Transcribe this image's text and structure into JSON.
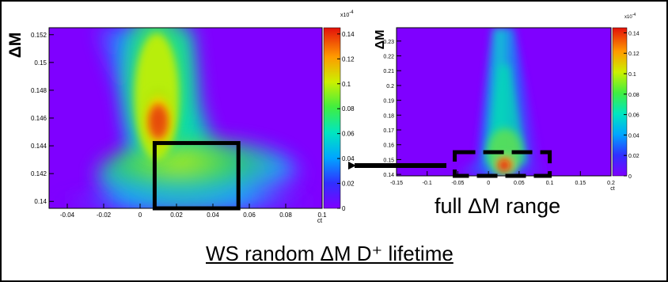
{
  "colors": {
    "background": "#7f00ff",
    "peak": "#e3400a",
    "frame": "#000000"
  },
  "chart_data": [
    {
      "type": "heatmap",
      "ylabel": "ΔM",
      "xlabel": "ct",
      "xlim": [
        -0.05,
        0.1
      ],
      "ylim": [
        0.1395,
        0.1525
      ],
      "x_ticks": [
        "-0.04",
        "-0.02",
        "0",
        "0.02",
        "0.04",
        "0.06",
        "0.08",
        "0.1"
      ],
      "y_ticks": [
        "0.152",
        "0.15",
        "0.148",
        "0.146",
        "0.144",
        "0.142",
        "0.14"
      ],
      "colorbar": {
        "multiplier": "x10",
        "exponent": "-4",
        "range": [
          0,
          0.145
        ],
        "ticks": [
          "0.14",
          "0.12",
          "0.1",
          "0.08",
          "0.06",
          "0.04",
          "0.02",
          "0"
        ]
      },
      "peak": {
        "x": 0.0,
        "y": 0.146,
        "value": 0.143
      },
      "highlight_box": {
        "x": [
          0.008,
          0.054
        ],
        "y": [
          0.1395,
          0.1442
        ],
        "style": "solid"
      }
    },
    {
      "type": "heatmap",
      "ylabel": "ΔM",
      "xlabel": "ct",
      "xlim": [
        -0.15,
        0.2
      ],
      "ylim": [
        0.139,
        0.239
      ],
      "x_ticks": [
        "-0.15",
        "-0.1",
        "-0.05",
        "0",
        "0.05",
        "0.1",
        "0.15",
        "0.2"
      ],
      "y_ticks": [
        "0.23",
        "0.22",
        "0.21",
        "0.2",
        "0.19",
        "0.18",
        "0.17",
        "0.16",
        "0.15",
        "0.14"
      ],
      "colorbar": {
        "multiplier": "x10",
        "exponent": "-4",
        "range": [
          0,
          0.145
        ],
        "ticks": [
          "0.14",
          "0.12",
          "0.1",
          "0.08",
          "0.06",
          "0.04",
          "0.02",
          "0"
        ]
      },
      "peak": {
        "x": 0.0,
        "y": 0.145,
        "value": 0.14
      },
      "highlight_box": {
        "x": [
          -0.055,
          0.1
        ],
        "y": [
          0.139,
          0.155
        ],
        "style": "dashed"
      }
    }
  ],
  "annotations": {
    "range_caption": "full ΔM range",
    "title": "WS random ΔM D⁺ lifetime"
  }
}
